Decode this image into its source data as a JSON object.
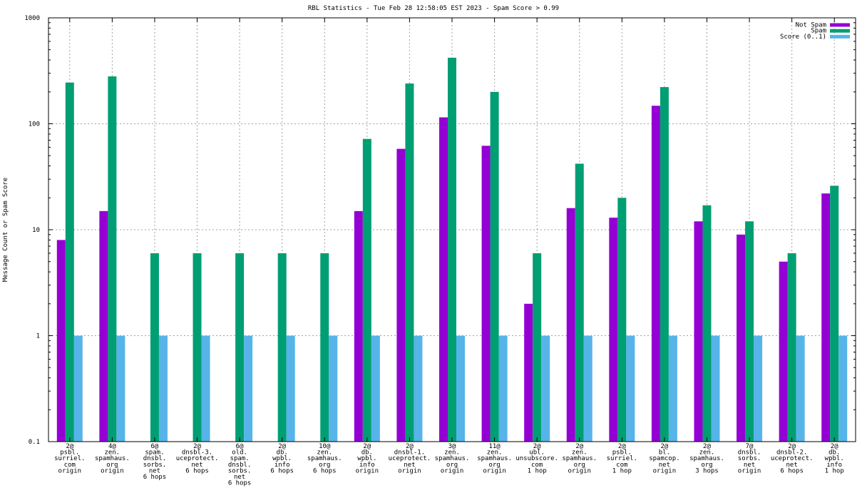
{
  "chart_data": {
    "type": "bar",
    "title": "RBL Statistics - Tue Feb 28 12:58:05 EST 2023 - Spam Score > 0.99",
    "ylabel": "Message Count or Spam Score",
    "xlabel": "",
    "yscale": "log",
    "ylim": [
      0.1,
      1000
    ],
    "yticks": [
      0.1,
      1,
      10,
      100,
      1000
    ],
    "ytick_labels": [
      "0.1",
      "1",
      "10",
      "100",
      "1000"
    ],
    "grid": true,
    "legend_position": "top-right",
    "categories": [
      [
        "2@",
        "psbl.",
        "surriel.",
        "com",
        "origin"
      ],
      [
        "4@",
        "zen.",
        "spamhaus.",
        "org",
        "origin"
      ],
      [
        "6@",
        "spam.",
        "dnsbl.",
        "sorbs.",
        "net",
        "6 hops"
      ],
      [
        "2@",
        "dnsbl-3.",
        "uceprotect.",
        "net",
        "6 hops"
      ],
      [
        "6@",
        "old.",
        "spam.",
        "dnsbl.",
        "sorbs.",
        "net",
        "6 hops"
      ],
      [
        "2@",
        "db.",
        "wpbl.",
        "info",
        "6 hops"
      ],
      [
        "10@",
        "zen.",
        "spamhaus.",
        "org",
        "6 hops"
      ],
      [
        "2@",
        "db.",
        "wpbl.",
        "info",
        "origin"
      ],
      [
        "2@",
        "dnsbl-1.",
        "uceprotect.",
        "net",
        "origin"
      ],
      [
        "3@",
        "zen.",
        "spamhaus.",
        "org",
        "origin"
      ],
      [
        "11@",
        "zen.",
        "spamhaus.",
        "org",
        "origin"
      ],
      [
        "2@",
        "ubl.",
        "unsubscore.",
        "com",
        "1 hop"
      ],
      [
        "2@",
        "zen.",
        "spamhaus.",
        "org",
        "origin"
      ],
      [
        "2@",
        "psbl.",
        "surriel.",
        "com",
        "1 hop"
      ],
      [
        "2@",
        "bl.",
        "spamcop.",
        "net",
        "origin"
      ],
      [
        "2@",
        "zen.",
        "spamhaus.",
        "org",
        "3 hops"
      ],
      [
        "7@",
        "dnsbl.",
        "sorbs.",
        "net",
        "origin"
      ],
      [
        "2@",
        "dnsbl-2.",
        "uceprotect.",
        "net",
        "6 hops"
      ],
      [
        "2@",
        "db.",
        "wpbl.",
        "info",
        "1 hop"
      ]
    ],
    "series": [
      {
        "name": "Not Spam",
        "color": "#9400d3",
        "values": [
          8,
          15,
          null,
          null,
          null,
          null,
          null,
          15,
          58,
          115,
          62,
          2,
          16,
          13,
          148,
          12,
          9,
          5,
          22
        ]
      },
      {
        "name": "Spam",
        "color": "#009e73",
        "values": [
          245,
          280,
          6,
          6,
          6,
          6,
          6,
          72,
          240,
          420,
          200,
          6,
          42,
          20,
          222,
          17,
          12,
          6,
          26
        ]
      },
      {
        "name": "Score (0..1)",
        "color": "#56b4e9",
        "values": [
          1,
          1,
          1,
          1,
          1,
          1,
          1,
          1,
          1,
          1,
          1,
          1,
          1,
          1,
          1,
          1,
          1,
          1,
          1
        ]
      }
    ]
  }
}
